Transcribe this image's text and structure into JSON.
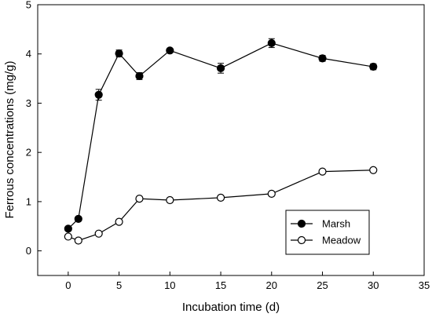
{
  "chart_data": {
    "type": "line",
    "xlabel": "Incubation time (d)",
    "ylabel": "Ferrous concentrations (mg/g)",
    "xlim": [
      -3,
      35
    ],
    "ylim": [
      -0.5,
      5
    ],
    "xticks": [
      0,
      5,
      10,
      15,
      20,
      25,
      30,
      35
    ],
    "yticks": [
      0,
      1,
      2,
      3,
      4,
      5
    ],
    "xtick_labels": [
      "0",
      "5",
      "10",
      "15",
      "20",
      "25",
      "30",
      "35"
    ],
    "ytick_labels": [
      "0",
      "1",
      "2",
      "3",
      "4",
      "5"
    ],
    "grid": false,
    "legend_position": "bottom-right",
    "x": [
      0,
      1,
      3,
      5,
      7,
      10,
      15,
      20,
      25,
      30
    ],
    "series": [
      {
        "name": "Marsh",
        "marker": "filled-circle",
        "values": [
          0.45,
          0.65,
          3.17,
          4.01,
          3.55,
          4.07,
          3.71,
          4.22,
          3.91,
          3.74
        ],
        "errors": [
          0.04,
          0.04,
          0.11,
          0.07,
          0.07,
          0.04,
          0.1,
          0.09,
          0.06,
          0.06
        ]
      },
      {
        "name": "Meadow",
        "marker": "open-circle",
        "values": [
          0.29,
          0.21,
          0.35,
          0.59,
          1.06,
          1.03,
          1.08,
          1.16,
          1.61,
          1.64
        ],
        "errors": [
          0.03,
          0.02,
          0.03,
          0.03,
          0.04,
          0.02,
          0.02,
          0.03,
          0.03,
          0.03
        ]
      }
    ]
  }
}
